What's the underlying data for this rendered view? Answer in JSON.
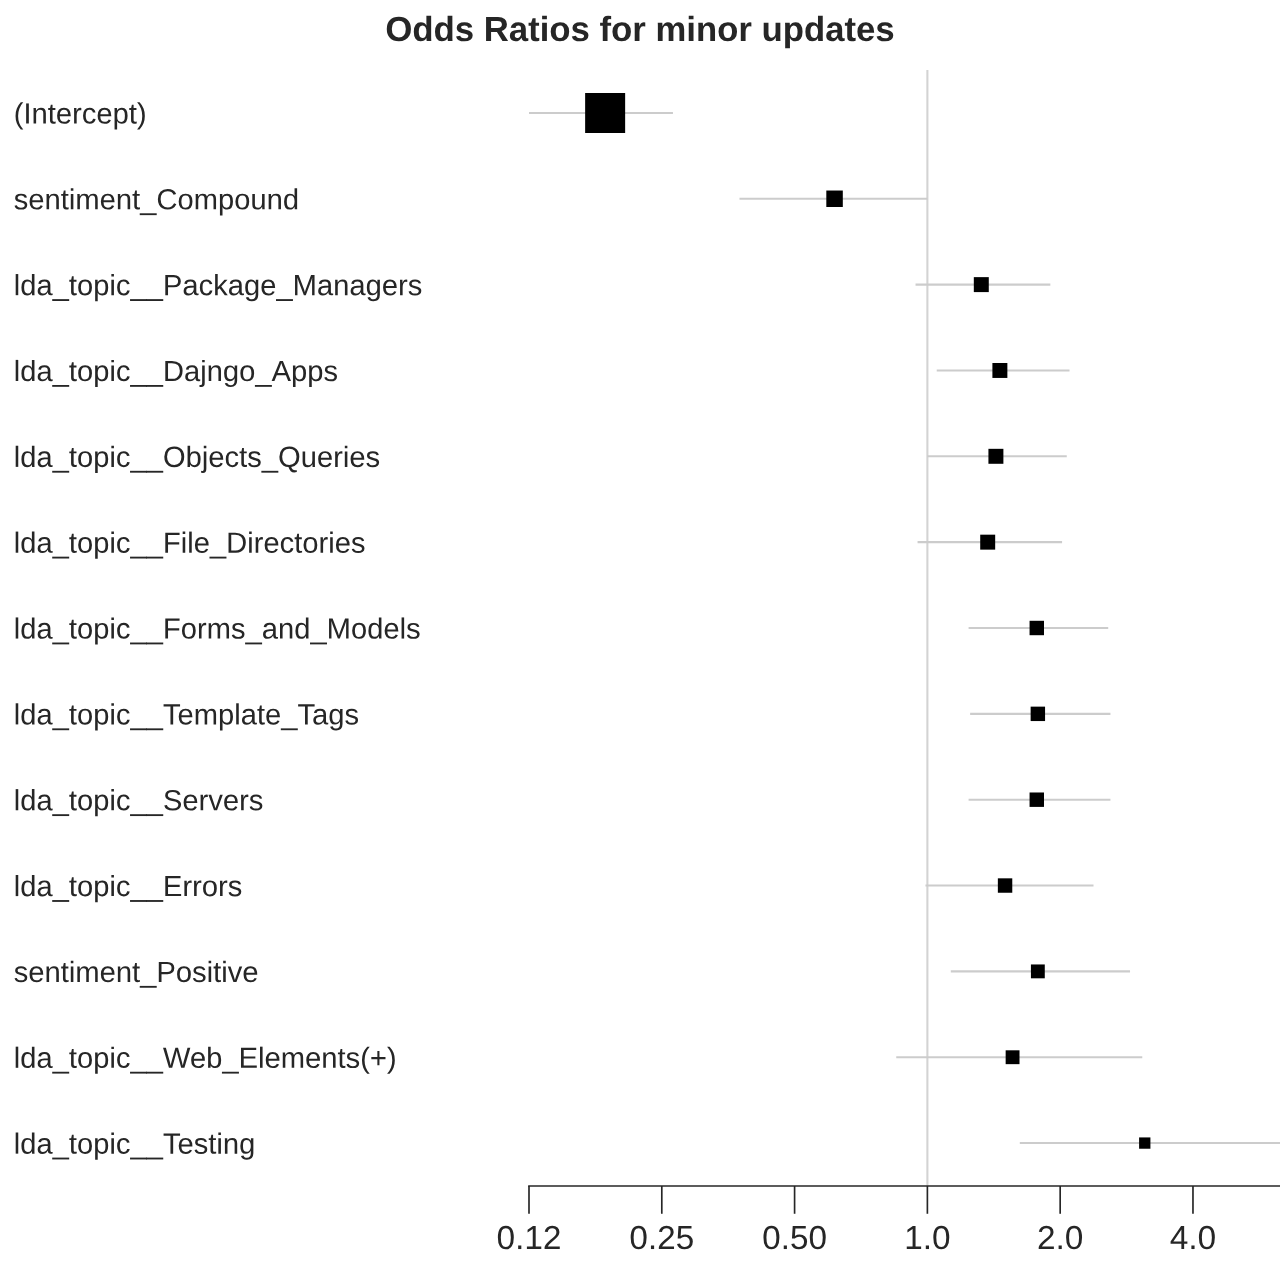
{
  "chart_data": {
    "type": "bubble",
    "orientation": "horizontal",
    "title": "Odds Ratios for minor updates",
    "categories": [
      "(Intercept)",
      "sentiment_Compound",
      "lda_topic__Package_Managers",
      "lda_topic__Dajngo_Apps",
      "lda_topic__Objects_Queries",
      "lda_topic__File_Directories",
      "lda_topic__Forms_and_Models",
      "lda_topic__Template_Tags",
      "lda_topic__Servers",
      "lda_topic__Errors",
      "sentiment_Positive",
      "lda_topic__Web_Elements(+)",
      "lda_topic__Testing"
    ],
    "color": "#000000",
    "values": [
      0.186,
      0.616,
      1.325,
      1.46,
      1.43,
      1.37,
      1.77,
      1.78,
      1.77,
      1.5,
      1.78,
      1.56,
      3.11
    ],
    "errors": [
      [
        0.125,
        0.265
      ],
      [
        0.375,
        1.0
      ],
      [
        0.94,
        1.9
      ],
      [
        1.05,
        2.1
      ],
      [
        1.0,
        2.07
      ],
      [
        0.95,
        2.02
      ],
      [
        1.24,
        2.57
      ],
      [
        1.25,
        2.6
      ],
      [
        1.24,
        2.6
      ],
      [
        0.99,
        2.38
      ],
      [
        1.13,
        2.88
      ],
      [
        0.85,
        3.07
      ],
      [
        1.62,
        6.3
      ]
    ],
    "sizes": [
      1,
      0.17,
      0.14,
      0.14,
      0.14,
      0.14,
      0.13,
      0.13,
      0.13,
      0.13,
      0.12,
      0.12,
      0.08
    ],
    "marker": "square",
    "log": "x",
    "xlim": [
      0.125,
      6.3
    ],
    "xticks": [
      {
        "value": 0.125,
        "label": "0.12"
      },
      0.25,
      {
        "value": 0.5,
        "label": "0.50"
      },
      {
        "value": 1,
        "label": "1.0"
      },
      {
        "value": 2,
        "label": "2.0"
      },
      {
        "value": 4,
        "label": "4.0"
      }
    ],
    "ref_lines": [
      {
        "axis": "x",
        "value": 1,
        "color": "#d3d3d3"
      }
    ],
    "grid": false,
    "legend": false
  }
}
